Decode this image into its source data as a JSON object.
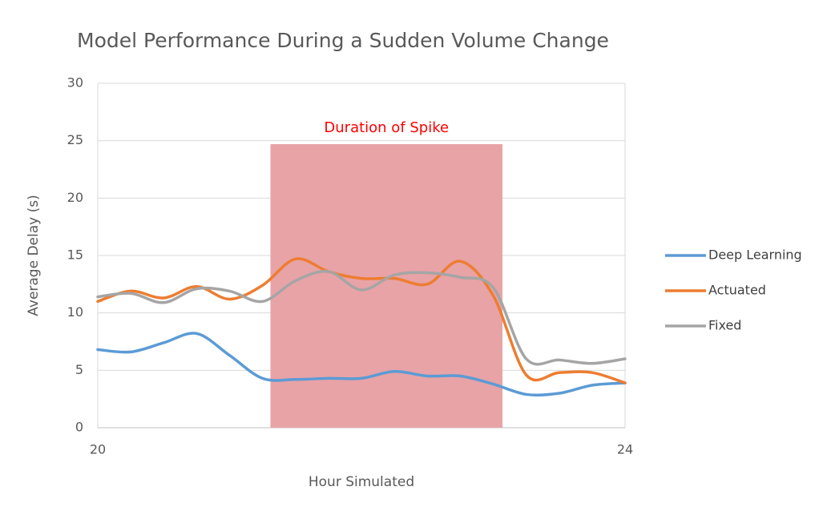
{
  "chart_data": {
    "type": "line",
    "title": "Model Performance During a Sudden Volume Change",
    "x_label": "Hour Simulated",
    "y_label": "Average Delay (s)",
    "x": [
      20,
      20.25,
      20.5,
      20.75,
      21,
      21.25,
      21.5,
      21.75,
      22,
      22.25,
      22.5,
      22.75,
      23,
      23.25,
      23.5,
      23.75,
      24
    ],
    "series": [
      {
        "name": "Deep Learning",
        "color": "#5b9bd5",
        "values": [
          6.8,
          6.6,
          7.4,
          8.2,
          6.3,
          4.3,
          4.2,
          4.3,
          4.3,
          4.9,
          4.5,
          4.5,
          3.8,
          2.9,
          3.0,
          3.7,
          3.9
        ]
      },
      {
        "name": "Actuated",
        "color": "#ed7d31",
        "values": [
          11.0,
          11.9,
          11.3,
          12.3,
          11.2,
          12.4,
          14.7,
          13.6,
          13.0,
          13.0,
          12.5,
          14.5,
          11.5,
          4.6,
          4.8,
          4.8,
          3.9
        ]
      },
      {
        "name": "Fixed",
        "color": "#a5a5a5",
        "values": [
          11.4,
          11.7,
          10.9,
          12.1,
          11.9,
          11.0,
          12.8,
          13.6,
          12.0,
          13.3,
          13.5,
          13.1,
          12.2,
          6.0,
          5.9,
          5.6,
          6.0
        ]
      }
    ],
    "xlim": [
      20,
      24
    ],
    "xticks": [
      20,
      24
    ],
    "ylim": [
      0,
      30
    ],
    "yticks": [
      0,
      5,
      10,
      15,
      20,
      25,
      30
    ],
    "grid": true,
    "legend": "right",
    "annotation": {
      "text": "Duration of Spike",
      "color": "#ff0000",
      "fill": "#e8a3a6",
      "x_start": 21.31,
      "x_end": 23.07,
      "y_top": 24.7
    }
  }
}
